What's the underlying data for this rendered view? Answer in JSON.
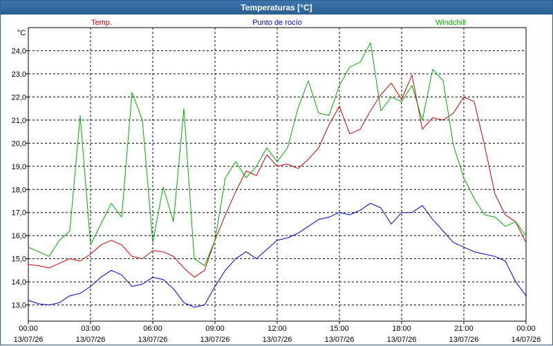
{
  "window": {
    "title": "Temperaturas [°C]"
  },
  "colors": {
    "temp": "#cc0000",
    "dew": "#0000cc",
    "wind": "#00aa00"
  },
  "chart_data": {
    "type": "line",
    "title": "Temperaturas [°C]",
    "ylabel": "°C",
    "ylim": [
      12.3,
      25.0
    ],
    "grid": true,
    "xlim": [
      0,
      24
    ],
    "yticks": [
      "13,0",
      "14,0",
      "15,0",
      "16,0",
      "17,0",
      "18,0",
      "19,0",
      "20,0",
      "21,0",
      "22,0",
      "23,0",
      "24,0"
    ],
    "xticks": [
      {
        "time": "00:00",
        "date": "13/07/26"
      },
      {
        "time": "03:00",
        "date": "13/07/26"
      },
      {
        "time": "06:00",
        "date": "13/07/26"
      },
      {
        "time": "09:00",
        "date": "13/07/26"
      },
      {
        "time": "12:00",
        "date": "13/07/26"
      },
      {
        "time": "15:00",
        "date": "13/07/26"
      },
      {
        "time": "18:00",
        "date": "13/07/26"
      },
      {
        "time": "21:00",
        "date": "13/07/26"
      },
      {
        "time": "00:00",
        "date": "14/07/26"
      }
    ],
    "series": [
      {
        "name": "Temp.",
        "x": [
          0,
          0.5,
          1,
          1.5,
          2,
          2.5,
          3,
          3.5,
          4,
          4.5,
          5,
          5.5,
          6,
          6.5,
          7,
          7.5,
          8,
          8.5,
          9,
          9.5,
          10,
          10.5,
          11,
          11.5,
          12,
          12.5,
          13,
          13.5,
          14,
          14.5,
          15,
          15.5,
          16,
          16.5,
          17,
          17.5,
          18,
          18.5,
          19,
          19.5,
          20,
          20.5,
          21,
          21.5,
          22,
          22.5,
          23,
          23.5,
          24
        ],
        "values": [
          14.75,
          14.7,
          14.6,
          14.8,
          15.0,
          14.9,
          15.2,
          15.6,
          15.8,
          15.6,
          15.1,
          15.0,
          15.35,
          15.3,
          15.1,
          14.6,
          14.2,
          14.5,
          15.8,
          16.9,
          17.9,
          18.8,
          18.6,
          19.5,
          19.0,
          19.1,
          18.9,
          19.3,
          19.8,
          20.8,
          21.6,
          20.4,
          20.6,
          21.4,
          22.1,
          22.6,
          21.9,
          22.95,
          20.6,
          21.1,
          21.0,
          21.3,
          22.0,
          21.8,
          19.9,
          17.8,
          16.9,
          16.6,
          15.7
        ]
      },
      {
        "name": "Punto de rocío",
        "x": [
          0,
          0.5,
          1,
          1.5,
          2,
          2.5,
          3,
          3.5,
          4,
          4.5,
          5,
          5.5,
          6,
          6.5,
          7,
          7.5,
          8,
          8.5,
          9,
          9.5,
          10,
          10.5,
          11,
          11.5,
          12,
          12.5,
          13,
          13.5,
          14,
          14.5,
          15,
          15.5,
          16,
          16.5,
          17,
          17.5,
          18,
          18.5,
          19,
          19.5,
          20,
          20.5,
          21,
          21.5,
          22,
          22.5,
          23,
          23.5,
          24
        ],
        "values": [
          13.2,
          13.05,
          13.0,
          13.1,
          13.4,
          13.5,
          13.8,
          14.2,
          14.5,
          14.3,
          13.8,
          13.9,
          14.2,
          14.1,
          13.7,
          13.1,
          12.9,
          13.0,
          13.8,
          14.5,
          15.0,
          15.3,
          15.0,
          15.4,
          15.8,
          15.9,
          16.1,
          16.4,
          16.7,
          16.8,
          17.0,
          16.9,
          17.1,
          17.4,
          17.2,
          16.5,
          17.0,
          17.0,
          17.3,
          16.7,
          16.2,
          15.7,
          15.5,
          15.3,
          15.2,
          15.1,
          14.9,
          14.0,
          13.4
        ]
      },
      {
        "name": "Windchill",
        "x": [
          0,
          0.5,
          1,
          1.5,
          2,
          2.5,
          3,
          3.5,
          4,
          4.5,
          5,
          5.5,
          6,
          6.5,
          7,
          7.5,
          8,
          8.5,
          9,
          9.5,
          10,
          10.5,
          11,
          11.5,
          12,
          12.5,
          13,
          13.5,
          14,
          14.5,
          15,
          15.5,
          16,
          16.5,
          17,
          17.5,
          18,
          18.5,
          19,
          19.5,
          20,
          20.5,
          21,
          21.5,
          22,
          22.5,
          23,
          23.5,
          24
        ],
        "values": [
          15.5,
          15.3,
          15.1,
          15.8,
          16.2,
          21.2,
          15.6,
          16.5,
          17.4,
          16.8,
          22.2,
          21.0,
          15.7,
          18.1,
          16.6,
          21.5,
          15.0,
          14.7,
          15.8,
          18.5,
          19.2,
          18.5,
          19.0,
          19.8,
          19.2,
          19.8,
          21.5,
          22.7,
          21.3,
          21.2,
          22.5,
          23.3,
          23.5,
          24.35,
          21.4,
          22.0,
          21.8,
          22.5,
          21.0,
          23.2,
          22.7,
          19.9,
          18.5,
          17.6,
          16.9,
          16.8,
          16.4,
          16.6,
          16.0
        ]
      }
    ]
  }
}
